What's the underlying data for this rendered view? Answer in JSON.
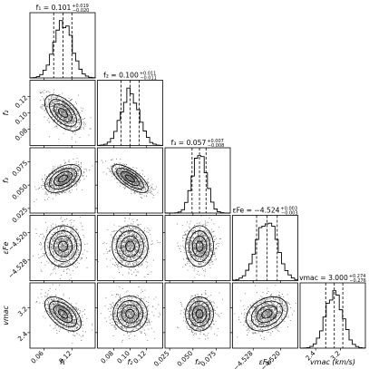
{
  "chart_data": {
    "type": "corner",
    "parameters": [
      {
        "key": "f1",
        "axis_label": "f₁",
        "title_base": "f₁ = 0.101",
        "title_plus": "+0.019",
        "title_minus": "−0.020",
        "median": 0.101,
        "err_plus": 0.019,
        "err_minus": 0.02,
        "range": [
          0.03,
          0.17
        ],
        "ticks": [
          0.06,
          0.12
        ],
        "tick_labels": [
          "0.06",
          "0.12"
        ]
      },
      {
        "key": "f2",
        "axis_label": "f₂",
        "title_base": "f₂ = 0.100",
        "title_plus": "+0.011",
        "title_minus": "−0.011",
        "median": 0.1,
        "err_plus": 0.011,
        "err_minus": 0.011,
        "range": [
          0.06,
          0.14
        ],
        "ticks": [
          0.08,
          0.1,
          0.12
        ],
        "tick_labels": [
          "0.08",
          "0.10",
          "0.12"
        ]
      },
      {
        "key": "f3",
        "axis_label": "f₃",
        "title_base": "f₃ = 0.057",
        "title_plus": "+0.007",
        "title_minus": "−0.008",
        "median": 0.057,
        "err_plus": 0.007,
        "err_minus": 0.008,
        "range": [
          0.02,
          0.09
        ],
        "ticks": [
          0.025,
          0.05,
          0.075
        ],
        "tick_labels": [
          "0.025",
          "0.050",
          "0.075"
        ]
      },
      {
        "key": "eps_fe",
        "axis_label": "εFe",
        "title_base": "εFe = −4.524",
        "title_plus": "+0.003",
        "title_minus": "−0.003",
        "median": -4.524,
        "err_plus": 0.003,
        "err_minus": 0.003,
        "range": [
          -4.534,
          -4.515
        ],
        "ticks": [
          -4.528,
          -4.52
        ],
        "tick_labels": [
          "−4.528",
          "−4.520"
        ]
      },
      {
        "key": "v_mac",
        "axis_label": "vmac (km/s)",
        "axis_label_short": "vmac",
        "title_base": "vmac = 3.000",
        "title_plus": "+0.274",
        "title_minus": "−0.276",
        "median": 3.0,
        "err_plus": 0.274,
        "err_minus": 0.276,
        "range": [
          1.9,
          4.0
        ],
        "ticks": [
          2.4,
          3.2
        ],
        "tick_labels": [
          "2.4",
          "3.2"
        ]
      }
    ],
    "correlations": [
      [
        1,
        -0.55,
        0.45,
        0.0,
        -0.55
      ],
      [
        -0.55,
        1,
        -0.7,
        0.0,
        0.0
      ],
      [
        0.45,
        -0.7,
        1,
        0.0,
        0.0
      ],
      [
        0.0,
        0.0,
        0.0,
        1,
        0.3
      ],
      [
        -0.55,
        0.0,
        0.0,
        0.3,
        1
      ]
    ],
    "quantile_lines": "16th, 50th, 84th percentiles (dashed)",
    "contour_levels": "0.5, 1, 1.5, 2 sigma",
    "grid": false
  }
}
